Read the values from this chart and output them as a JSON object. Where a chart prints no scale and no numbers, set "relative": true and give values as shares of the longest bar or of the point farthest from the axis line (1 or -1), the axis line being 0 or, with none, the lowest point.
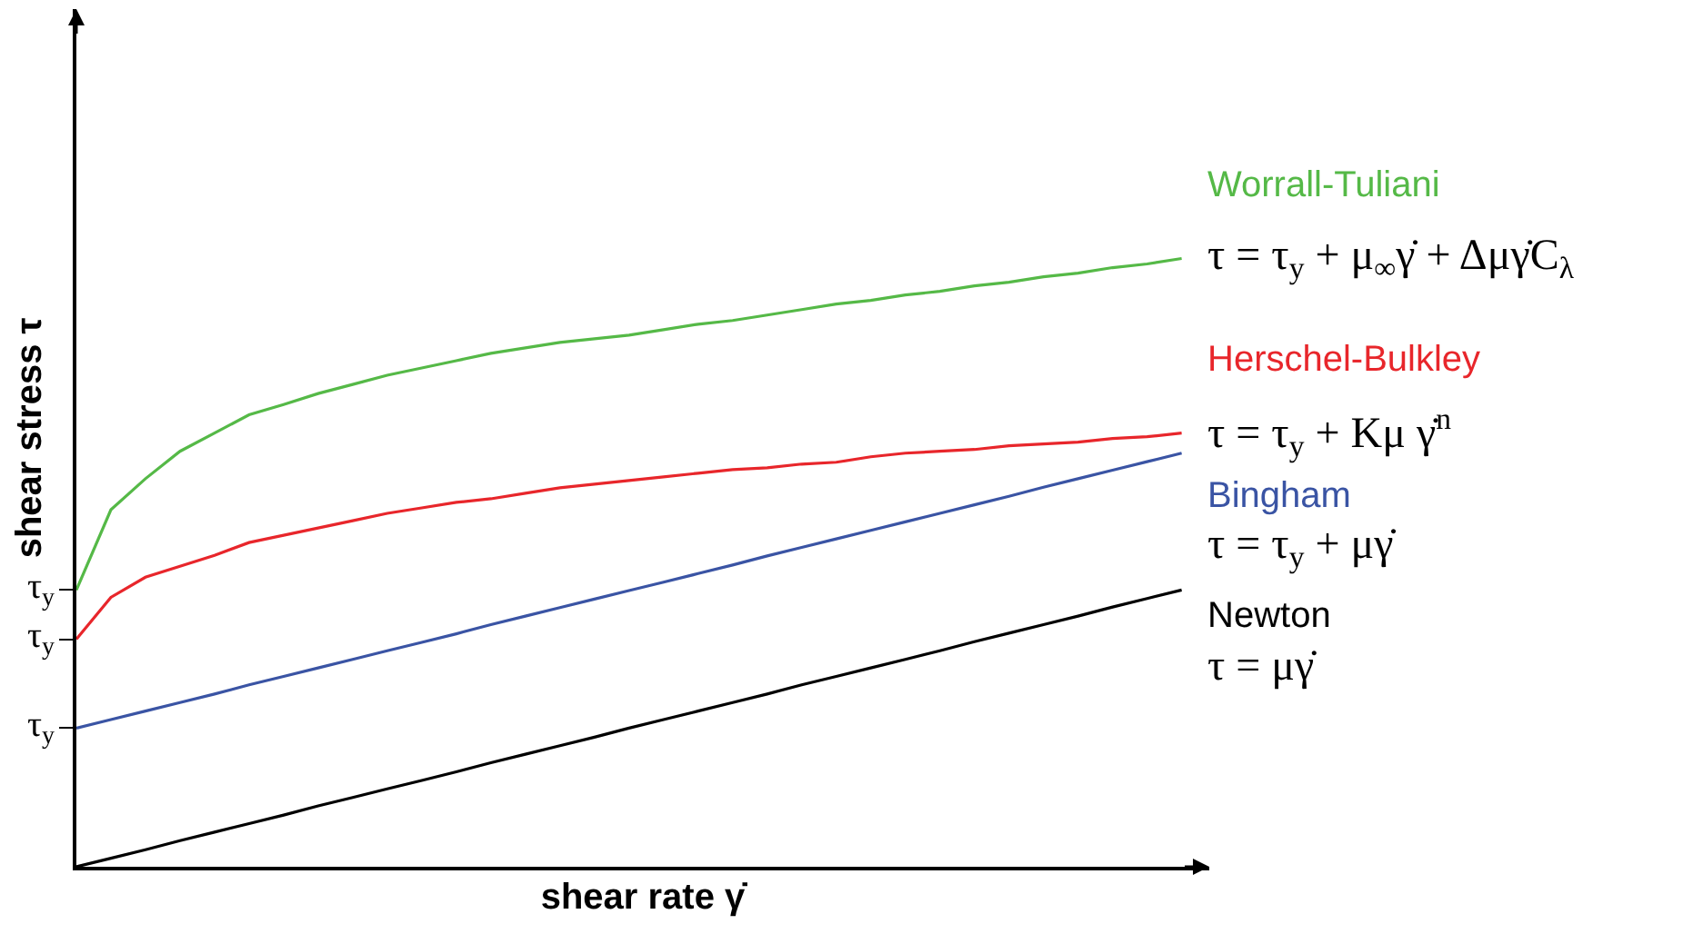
{
  "chart_data": {
    "type": "line",
    "relative": true,
    "xlabel": "shear rate γ̇",
    "ylabel": "shear stress τ",
    "categories": [
      null,
      null,
      null,
      null,
      null,
      null,
      null,
      null,
      null,
      null,
      null,
      null,
      null,
      null,
      null,
      null,
      null,
      null,
      null,
      null,
      null,
      null,
      null,
      null,
      null,
      null,
      null,
      null,
      null,
      null,
      null,
      null,
      null
    ],
    "tick_labels": false,
    "marker": "none",
    "line_style": "solid",
    "series": [
      {
        "name": "Newton",
        "color": "#000000",
        "values": [
          0,
          0.014,
          0.028,
          0.043,
          0.057,
          0.071,
          0.085,
          0.1,
          0.114,
          0.128,
          0.142,
          0.156,
          0.171,
          0.185,
          0.199,
          0.213,
          0.228,
          0.242,
          0.256,
          0.27,
          0.284,
          0.299,
          0.313,
          0.327,
          0.341,
          0.355,
          0.37,
          0.384,
          0.398,
          0.412,
          0.427,
          0.441,
          0.455
        ]
      },
      {
        "name": "Bingham",
        "color": "#3a54a4",
        "values": [
          0.228,
          0.242,
          0.256,
          0.27,
          0.284,
          0.299,
          0.313,
          0.327,
          0.341,
          0.355,
          0.369,
          0.383,
          0.398,
          0.412,
          0.426,
          0.44,
          0.454,
          0.468,
          0.482,
          0.496,
          0.511,
          0.525,
          0.539,
          0.553,
          0.567,
          0.581,
          0.595,
          0.609,
          0.624,
          0.638,
          0.652,
          0.666,
          0.68
        ]
      },
      {
        "name": "Herschel-Bulkley",
        "color": "#e8262b",
        "values": [
          0.374,
          0.443,
          0.476,
          0.494,
          0.512,
          0.533,
          0.545,
          0.557,
          0.569,
          0.581,
          0.59,
          0.599,
          0.605,
          0.614,
          0.623,
          0.629,
          0.635,
          0.641,
          0.647,
          0.653,
          0.656,
          0.662,
          0.665,
          0.674,
          0.68,
          0.683,
          0.686,
          0.692,
          0.695,
          0.698,
          0.704,
          0.707,
          0.713
        ]
      },
      {
        "name": "Worrall-Tuliani",
        "color": "#55b947",
        "values": [
          0.455,
          0.587,
          0.638,
          0.683,
          0.713,
          0.743,
          0.76,
          0.778,
          0.793,
          0.808,
          0.82,
          0.832,
          0.844,
          0.853,
          0.862,
          0.868,
          0.874,
          0.883,
          0.892,
          0.898,
          0.907,
          0.916,
          0.925,
          0.931,
          0.94,
          0.946,
          0.955,
          0.961,
          0.97,
          0.976,
          0.985,
          0.991,
          1.0
        ]
      }
    ],
    "annotations": [
      "τ = μγ̇",
      "τ = τ$_{y}$ + μγ̇",
      "τ = τ$_{y}$ + Kμ γ̇$^{n}$",
      "τ = τ$_{y}$ + μ$_{∞}$γ̇ + Δμγ̇C$_{λ}$",
      "τ$_{y}$",
      "τ$_{y}$",
      "τ$_{y}$"
    ]
  }
}
